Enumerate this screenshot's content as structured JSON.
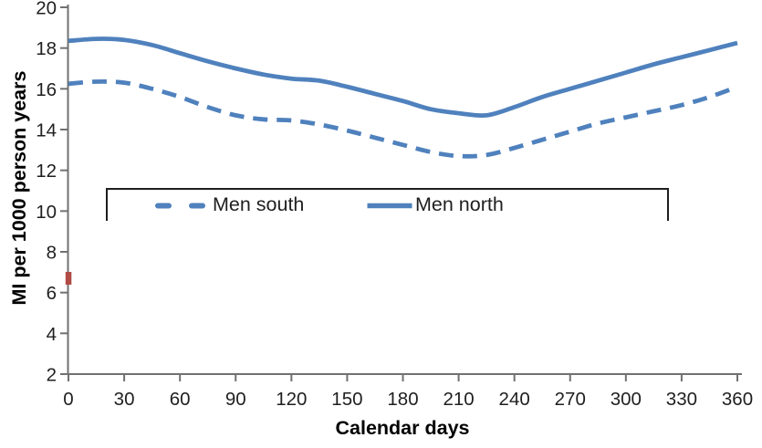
{
  "chart_data": {
    "type": "line",
    "title": "",
    "xlabel": "Calendar days",
    "ylabel": "MI per 1000 person years",
    "xlim": [
      0,
      360
    ],
    "ylim": [
      2,
      20
    ],
    "xticks": [
      0,
      30,
      60,
      90,
      120,
      150,
      180,
      210,
      240,
      270,
      300,
      330,
      360
    ],
    "yticks": [
      2,
      4,
      6,
      8,
      10,
      12,
      14,
      16,
      18,
      20
    ],
    "grid": false,
    "legend_position": "inside-upper-middle-box",
    "x": [
      0,
      15,
      30,
      45,
      60,
      75,
      90,
      105,
      120,
      135,
      150,
      165,
      180,
      195,
      210,
      225,
      240,
      255,
      270,
      285,
      300,
      315,
      330,
      345,
      360
    ],
    "series": [
      {
        "name": "Men south",
        "style": "dashed",
        "color": "#4f81bd",
        "values": [
          16.25,
          16.35,
          16.3,
          16.0,
          15.6,
          15.1,
          14.7,
          14.5,
          14.45,
          14.25,
          13.95,
          13.6,
          13.25,
          12.9,
          12.7,
          12.75,
          13.1,
          13.5,
          13.9,
          14.3,
          14.6,
          14.9,
          15.2,
          15.6,
          16.1
        ]
      },
      {
        "name": "Men north",
        "style": "solid",
        "color": "#4f81bd",
        "values": [
          18.35,
          18.45,
          18.4,
          18.15,
          17.75,
          17.35,
          17.0,
          16.7,
          16.5,
          16.4,
          16.1,
          15.75,
          15.4,
          15.0,
          14.8,
          14.7,
          15.1,
          15.6,
          16.0,
          16.4,
          16.8,
          17.2,
          17.55,
          17.9,
          18.25
        ]
      }
    ],
    "annotations": [
      {
        "type": "marker",
        "x": 0,
        "y": 6.7,
        "color": "#b04b45"
      }
    ]
  },
  "colors": {
    "axis": "#717171",
    "text": "#1f1f1f",
    "line_blue": "#4f81bd",
    "legend_border": "#1f1f1f",
    "marker_red": "#b04b45"
  }
}
